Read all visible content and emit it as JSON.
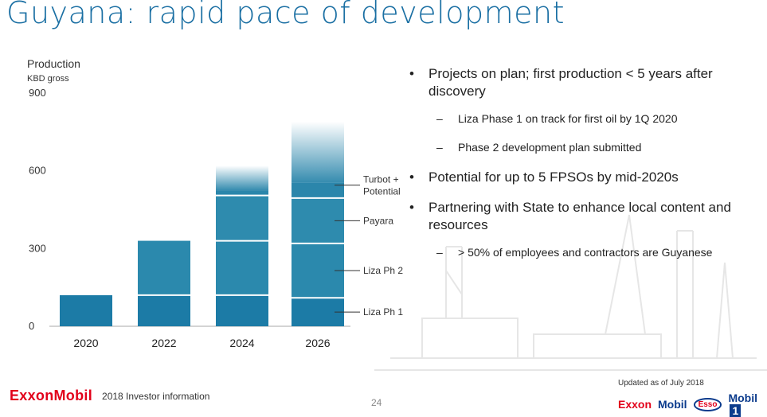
{
  "title": "Guyana: rapid pace of development",
  "chart_data": {
    "type": "bar",
    "stacked": true,
    "ylabel": "Production",
    "yunit": "KBD gross",
    "ylim": [
      0,
      900
    ],
    "yticks": [
      "900",
      "600",
      "300",
      "0"
    ],
    "categories": [
      "2020",
      "2022",
      "2024",
      "2026"
    ],
    "series": [
      {
        "name": "Liza Ph 1",
        "values": [
          120,
          120,
          120,
          110
        ],
        "color": "#1c7ba6"
      },
      {
        "name": "Liza Ph 2",
        "values": [
          0,
          210,
          210,
          210
        ],
        "color": "#2b89ad"
      },
      {
        "name": "Payara",
        "values": [
          0,
          0,
          175,
          175
        ],
        "color": "#2e8bae"
      },
      {
        "name": "Turbot + Potential",
        "values": [
          0,
          0,
          20,
          60
        ],
        "color": "#2b86ab"
      }
    ],
    "potential_fade_top": [
      0,
      0,
      620,
      790
    ],
    "legend": "right, leader lines"
  },
  "bullets": [
    {
      "text": "Projects on plan; first production < 5 years after discovery",
      "sub": [
        "Liza Phase 1 on track for first oil by 1Q 2020",
        "Phase 2 development plan submitted"
      ]
    },
    {
      "text": "Potential for up to 5 FPSOs by mid-2020s",
      "sub": []
    },
    {
      "text": "Partnering with State to enhance local content and resources",
      "sub": [
        "> 50% of employees and contractors are Guyanese"
      ]
    }
  ],
  "footer": {
    "logo": "ExxonMobil",
    "investor_info": "2018 Investor information",
    "page": "24",
    "updated": "Updated as of July 2018",
    "brands": {
      "exxon": "Exxon",
      "mobil": "Mobil",
      "esso": "Esso",
      "mobil1": "Mobil",
      "mobil1_num": "1"
    }
  },
  "colors": {
    "title": "#1a6fa3",
    "exxon_red": "#e2001a",
    "mobil_blue": "#0b3b8c"
  }
}
